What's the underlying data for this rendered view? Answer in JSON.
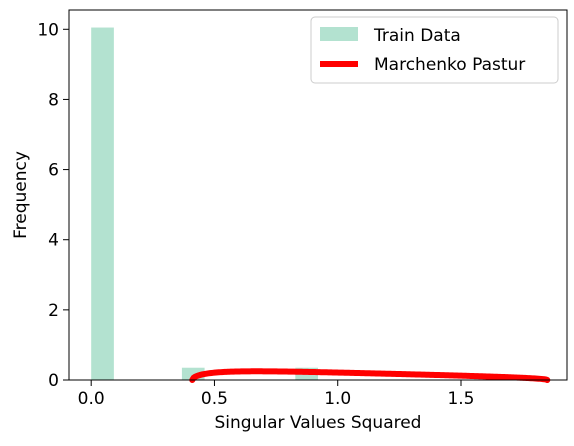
{
  "chart_data": {
    "type": "bar",
    "xlabel": "Singular Values Squared",
    "ylabel": "Frequency",
    "xlim": [
      -0.09,
      1.93
    ],
    "ylim": [
      0,
      10.55
    ],
    "x_ticks": [
      0.0,
      0.5,
      1.0,
      1.5
    ],
    "x_tick_labels": [
      "0.0",
      "0.5",
      "1.0",
      "1.5"
    ],
    "y_ticks": [
      0,
      2,
      4,
      6,
      8,
      10
    ],
    "y_tick_labels": [
      "0",
      "2",
      "4",
      "6",
      "8",
      "10"
    ],
    "grid": false,
    "legend_position": "top-right",
    "histogram": {
      "name": "Train Data",
      "color": "#b3e2d0",
      "bins": [
        {
          "x0": 0.0,
          "x1": 0.092,
          "value": 10.05
        },
        {
          "x0": 0.092,
          "x1": 0.184,
          "value": 0
        },
        {
          "x0": 0.184,
          "x1": 0.276,
          "value": 0
        },
        {
          "x0": 0.276,
          "x1": 0.368,
          "value": 0
        },
        {
          "x0": 0.368,
          "x1": 0.46,
          "value": 0.35
        },
        {
          "x0": 0.46,
          "x1": 0.552,
          "value": 0
        },
        {
          "x0": 0.552,
          "x1": 0.644,
          "value": 0
        },
        {
          "x0": 0.644,
          "x1": 0.736,
          "value": 0
        },
        {
          "x0": 0.736,
          "x1": 0.828,
          "value": 0
        },
        {
          "x0": 0.828,
          "x1": 0.92,
          "value": 0.35
        }
      ]
    },
    "curve": {
      "name": "Marchenko Pastur",
      "color": "#ff0000",
      "lambda_min": 0.41,
      "lambda_max": 1.85,
      "scale": 0.3
    }
  }
}
